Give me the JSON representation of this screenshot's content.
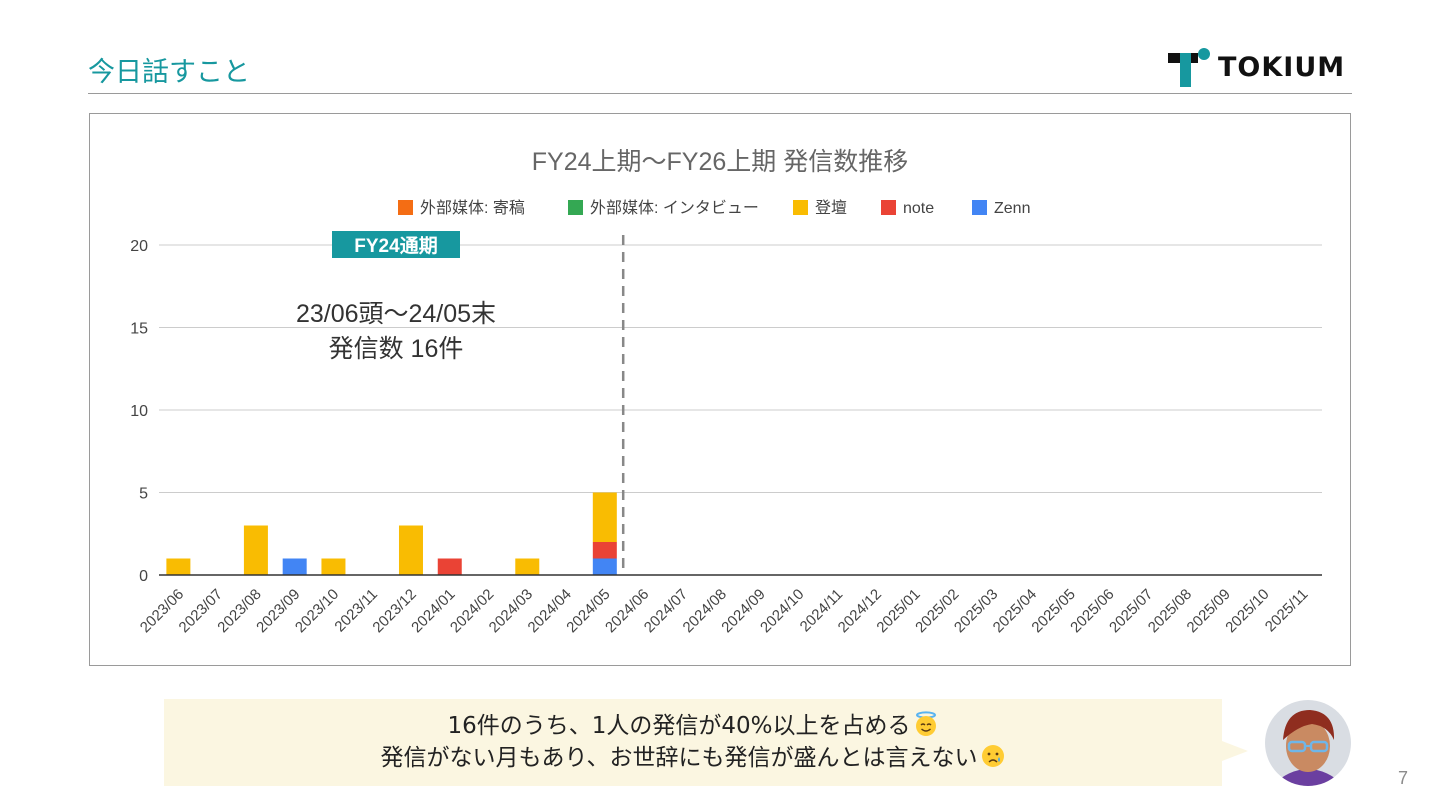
{
  "header": {
    "title": "今日話すこと",
    "logo_text": "TOKIUM"
  },
  "colors": {
    "accent": "#17989f",
    "yellow": "#f9bc02",
    "red": "#ea4335",
    "blue": "#4285f4",
    "orange": "#f46d14",
    "green": "#34a853",
    "fy_box": "#17989f"
  },
  "chart_data": {
    "type": "bar",
    "stacked": true,
    "title": "FY24上期～FY26上期 発信数推移",
    "categories": [
      "2023/06",
      "2023/07",
      "2023/08",
      "2023/09",
      "2023/10",
      "2023/11",
      "2023/12",
      "2024/01",
      "2024/02",
      "2024/03",
      "2024/04",
      "2024/05",
      "2024/06",
      "2024/07",
      "2024/08",
      "2024/09",
      "2024/10",
      "2024/11",
      "2024/12",
      "2025/01",
      "2025/02",
      "2025/03",
      "2025/04",
      "2025/05",
      "2025/06",
      "2025/07",
      "2025/08",
      "2025/09",
      "2025/10",
      "2025/11"
    ],
    "series": [
      {
        "name": "外部媒体: 寄稿",
        "color": "#f46d14",
        "values": [
          0,
          0,
          0,
          0,
          0,
          0,
          0,
          0,
          0,
          0,
          0,
          0,
          0,
          0,
          0,
          0,
          0,
          0,
          0,
          0,
          0,
          0,
          0,
          0,
          0,
          0,
          0,
          0,
          0,
          0
        ]
      },
      {
        "name": "外部媒体: インタビュー",
        "color": "#34a853",
        "values": [
          0,
          0,
          0,
          0,
          0,
          0,
          0,
          0,
          0,
          0,
          0,
          0,
          0,
          0,
          0,
          0,
          0,
          0,
          0,
          0,
          0,
          0,
          0,
          0,
          0,
          0,
          0,
          0,
          0,
          0
        ]
      },
      {
        "name": "登壇",
        "color": "#f9bc02",
        "values": [
          1,
          0,
          3,
          0,
          1,
          0,
          3,
          0,
          0,
          1,
          0,
          3,
          0,
          0,
          0,
          0,
          0,
          0,
          0,
          0,
          0,
          0,
          0,
          0,
          0,
          0,
          0,
          0,
          0,
          0
        ]
      },
      {
        "name": "note",
        "color": "#ea4335",
        "values": [
          0,
          0,
          0,
          0,
          0,
          0,
          0,
          1,
          0,
          0,
          0,
          1,
          0,
          0,
          0,
          0,
          0,
          0,
          0,
          0,
          0,
          0,
          0,
          0,
          0,
          0,
          0,
          0,
          0,
          0
        ]
      },
      {
        "name": "Zenn",
        "color": "#4285f4",
        "values": [
          0,
          0,
          0,
          1,
          0,
          0,
          0,
          0,
          0,
          0,
          0,
          1,
          0,
          0,
          0,
          0,
          0,
          0,
          0,
          0,
          0,
          0,
          0,
          0,
          0,
          0,
          0,
          0,
          0,
          0
        ]
      }
    ],
    "stack_order": [
      "Zenn",
      "note",
      "登壇"
    ],
    "yticks": [
      0,
      5,
      10,
      15,
      20
    ],
    "ylim": [
      0,
      20
    ],
    "grid": true,
    "legend_position": "top",
    "annotation": {
      "label": "FY24通期",
      "line1": "23/06頭～24/05末",
      "line2": "発信数 16件"
    }
  },
  "note": {
    "line1": "16件のうち、1人の発信が40%以上を占める",
    "line1_emoji": "smiling-face-with-halo",
    "line2": "発信がない月もあり、お世辞にも発信が盛んとは言えない",
    "line2_emoji": "crying-face"
  },
  "page_number": "7"
}
